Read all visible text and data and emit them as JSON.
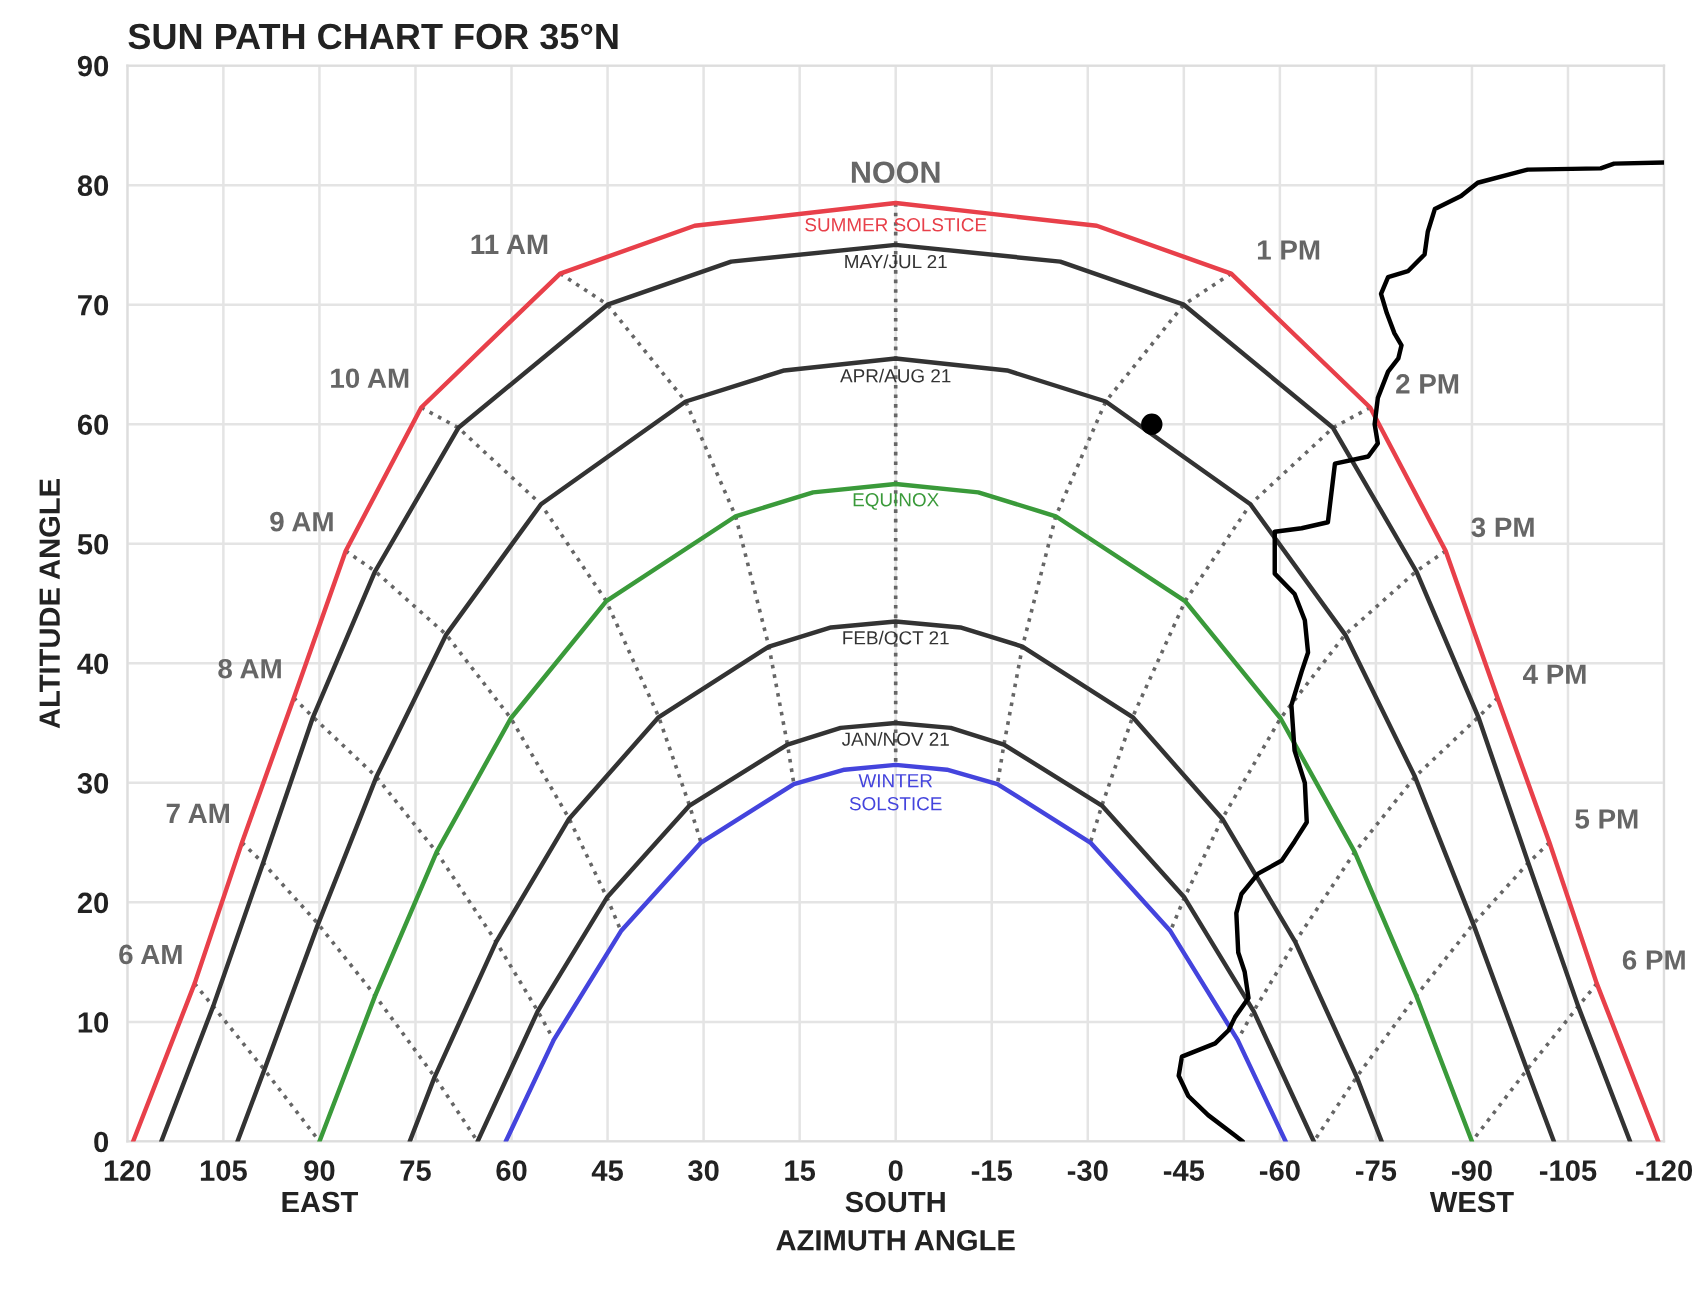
{
  "chart_data": {
    "type": "line",
    "title": "SUN PATH CHART FOR 35°N",
    "xlabel": "AZIMUTH ANGLE",
    "ylabel": "ALTITUDE ANGLE",
    "xlim": [
      120,
      -120
    ],
    "ylim": [
      0,
      90
    ],
    "xticks": [
      120,
      105,
      {
        "value": 90,
        "label": "90\nEAST"
      },
      75,
      60,
      45,
      30,
      15,
      {
        "value": 0,
        "label": "0\nSOUTH"
      },
      -15,
      -30,
      -45,
      -60,
      -75,
      {
        "value": -90,
        "label": "-90\nWEST"
      },
      -105,
      -120
    ],
    "yticks": [
      0,
      10,
      20,
      30,
      40,
      50,
      60,
      70,
      80,
      90
    ],
    "grid": true,
    "series": [
      {
        "name": "SUMMER SOLSTICE",
        "color": "#e8404a",
        "line_style": "solid",
        "x": [
          119.1,
          109.5,
          102.1,
          94,
          85.9,
          74.1,
          52.4,
          31.4,
          0,
          -31.4,
          -52.4,
          -74.1,
          -85.9,
          -94,
          -102.1,
          -109.5,
          -119.1
        ],
        "values": [
          0,
          13.2,
          25,
          37.1,
          49.4,
          61.4,
          72.6,
          76.6,
          78.5,
          76.6,
          72.6,
          61.4,
          49.4,
          37.1,
          25,
          13.2,
          0
        ]
      },
      {
        "name": "MAY/JUL 21",
        "color": "#333333",
        "line_style": "solid",
        "x": [
          114.7,
          106.6,
          98.8,
          91,
          81.3,
          68.3,
          45,
          25.7,
          0,
          -25.7,
          -45,
          -68.3,
          -81.3,
          -91,
          -98.8,
          -106.6,
          -114.7
        ],
        "values": [
          0,
          11.3,
          23.3,
          35.5,
          47.7,
          59.7,
          70,
          73.6,
          75,
          73.6,
          70,
          59.7,
          47.7,
          35.5,
          23.3,
          11.3,
          0
        ]
      },
      {
        "name": "APR/AUG 21",
        "color": "#333333",
        "line_style": "solid",
        "x": [
          102.8,
          98.6,
          90.2,
          81.1,
          70.2,
          55.4,
          32.8,
          17.4,
          0,
          -17.4,
          -32.8,
          -55.4,
          -70.2,
          -81.1,
          -90.2,
          -98.6,
          -102.8
        ],
        "values": [
          0,
          6,
          18.2,
          30.5,
          42.4,
          53.3,
          61.9,
          64.5,
          65.5,
          64.5,
          61.9,
          53.3,
          42.4,
          30.5,
          18.2,
          6,
          0
        ]
      },
      {
        "name": "EQUINOX",
        "color": "#3a9a3a",
        "line_style": "solid",
        "x": [
          90,
          81.3,
          71.7,
          60.1,
          45.2,
          25,
          12.9,
          0,
          -12.9,
          -25,
          -45.2,
          -60.1,
          -71.7,
          -81.3,
          -90
        ],
        "values": [
          0,
          12.2,
          24.2,
          35.4,
          45.2,
          52.3,
          54.3,
          55,
          54.3,
          52.3,
          45.2,
          35.4,
          24.2,
          12.2,
          0
        ]
      },
      {
        "name": "FEB/OCT 21",
        "color": "#333333",
        "line_style": "solid",
        "x": [
          75.9,
          72,
          62.4,
          51,
          37,
          19.8,
          10.1,
          0,
          -10.1,
          -19.8,
          -37,
          -51,
          -62.4,
          -72,
          -75.9
        ],
        "values": [
          0,
          5.4,
          16.7,
          27,
          35.5,
          41.4,
          43,
          43.5,
          43,
          41.4,
          35.5,
          27,
          16.7,
          5.4,
          0
        ]
      },
      {
        "name": "JAN/NOV 21",
        "color": "#333333",
        "line_style": "solid",
        "x": [
          65.3,
          55.9,
          45.1,
          32.2,
          16.9,
          8.6,
          0,
          -8.6,
          -16.9,
          -32.2,
          -45.1,
          -55.9,
          -65.3
        ],
        "values": [
          0,
          10.9,
          20.4,
          28.1,
          33.2,
          34.6,
          35,
          34.6,
          33.2,
          28.1,
          20.4,
          10.9,
          0
        ]
      },
      {
        "name": "WINTER\nSOLSTICE",
        "color": "#4444dd",
        "line_style": "solid",
        "x": [
          60.9,
          53.4,
          42.9,
          30.4,
          15.9,
          8,
          0,
          -8,
          -15.9,
          -30.4,
          -42.9,
          -53.4,
          -60.9
        ],
        "values": [
          0,
          8.5,
          17.6,
          25,
          29.9,
          31.1,
          31.5,
          31.1,
          29.9,
          25,
          17.6,
          8.5,
          0
        ]
      },
      {
        "name": "6 AM",
        "color": "#666666",
        "line_style": "dotted",
        "x": [
          109.5,
          106.6,
          98.6,
          90
        ],
        "values": [
          13.2,
          11.3,
          6,
          0
        ]
      },
      {
        "name": "7 AM",
        "color": "#666666",
        "line_style": "dotted",
        "x": [
          102.1,
          98.8,
          90.2,
          81.3,
          72,
          65.3
        ],
        "values": [
          25,
          23.3,
          18.2,
          12.2,
          5.4,
          0
        ]
      },
      {
        "name": "8 AM",
        "color": "#666666",
        "line_style": "dotted",
        "x": [
          94,
          91,
          81.1,
          71.7,
          62.4,
          55.9,
          53.4
        ],
        "values": [
          37.1,
          35.5,
          30.5,
          24.2,
          16.7,
          10.9,
          8.5
        ]
      },
      {
        "name": "9 AM",
        "color": "#666666",
        "line_style": "dotted",
        "x": [
          85.9,
          81.3,
          70.2,
          60.1,
          51,
          45.1,
          42.9
        ],
        "values": [
          49.4,
          47.7,
          42.4,
          35.4,
          27,
          20.4,
          17.6
        ]
      },
      {
        "name": "10 AM",
        "color": "#666666",
        "line_style": "dotted",
        "x": [
          74.1,
          68.3,
          55.4,
          45.2,
          37,
          32.2,
          30.4
        ],
        "values": [
          61.4,
          59.7,
          53.3,
          45.2,
          35.5,
          28.1,
          25
        ]
      },
      {
        "name": "11 AM",
        "color": "#666666",
        "line_style": "dotted",
        "x": [
          52.4,
          45,
          32.8,
          25,
          19.8,
          16.9,
          15.9
        ],
        "values": [
          72.6,
          70,
          61.9,
          52.3,
          41.4,
          33.2,
          29.9
        ]
      },
      {
        "name": "NOON",
        "color": "#666666",
        "line_style": "dotted",
        "x": [
          0,
          0,
          0,
          0,
          0,
          0,
          0
        ],
        "values": [
          78.5,
          75,
          65.5,
          55,
          43.5,
          35,
          31.5
        ]
      },
      {
        "name": "1 PM",
        "color": "#666666",
        "line_style": "dotted",
        "x": [
          -52.4,
          -45,
          -32.8,
          -25,
          -19.8,
          -16.9,
          -15.9
        ],
        "values": [
          72.6,
          70,
          61.9,
          52.3,
          41.4,
          33.2,
          29.9
        ]
      },
      {
        "name": "2 PM",
        "color": "#666666",
        "line_style": "dotted",
        "x": [
          -74.1,
          -68.3,
          -55.4,
          -45.2,
          -37,
          -32.2,
          -30.4
        ],
        "values": [
          61.4,
          59.7,
          53.3,
          45.2,
          35.5,
          28.1,
          25
        ]
      },
      {
        "name": "3 PM",
        "color": "#666666",
        "line_style": "dotted",
        "x": [
          -85.9,
          -81.3,
          -70.2,
          -60.1,
          -51,
          -45.1,
          -42.9
        ],
        "values": [
          49.4,
          47.7,
          42.4,
          35.4,
          27,
          20.4,
          17.6
        ]
      },
      {
        "name": "4 PM",
        "color": "#666666",
        "line_style": "dotted",
        "x": [
          -94,
          -91,
          -81.1,
          -71.7,
          -62.4,
          -55.9,
          -53.4
        ],
        "values": [
          37.1,
          35.5,
          30.5,
          24.2,
          16.7,
          10.9,
          8.5
        ]
      },
      {
        "name": "5 PM",
        "color": "#666666",
        "line_style": "dotted",
        "x": [
          -102.1,
          -98.8,
          -90.2,
          -81.3,
          -72,
          -65.3
        ],
        "values": [
          25,
          23.3,
          18.2,
          12.2,
          5.4,
          0
        ]
      },
      {
        "name": "6 PM",
        "color": "#666666",
        "line_style": "dotted",
        "x": [
          -109.5,
          -106.6,
          -98.6,
          -90
        ],
        "values": [
          13.2,
          11.3,
          6,
          0
        ]
      },
      {
        "color": "#000000",
        "line_style": "solid",
        "x": [
          -54.2,
          -53,
          -48.8,
          -45.7,
          -44.2,
          -44.7,
          -49.9,
          -52,
          -53,
          -55.1,
          -54.5,
          -53.5,
          -53.2,
          -54,
          -56.6,
          -60.3,
          -62.3,
          -64.2,
          -63.9,
          -62.3,
          -61.8,
          -63.4,
          -64.4,
          -63.9,
          -62.3,
          -59.2,
          -59.2,
          -63.4,
          -67.5,
          -68.6,
          -73.8,
          -75.3,
          -74.8,
          -75.3,
          -76.9,
          -78.5,
          -79,
          -77.9,
          -76.7,
          -75.8,
          -76.9,
          -80,
          -82.6,
          -83.1,
          -84.2,
          -88.3,
          -90.9,
          -96.6,
          -98.7,
          -110.1,
          -112.2,
          -120
        ],
        "values": [
          0,
          0.5,
          2.2,
          3.8,
          5.5,
          7.1,
          8.2,
          9.3,
          10.4,
          12,
          14.2,
          15.8,
          19.1,
          20.7,
          22.4,
          23.5,
          25.1,
          26.7,
          30,
          32.7,
          36.5,
          39.3,
          40.9,
          43.6,
          45.8,
          47.5,
          51,
          51.3,
          51.8,
          56.7,
          57.3,
          58.4,
          60,
          62.2,
          64.4,
          65.5,
          66.6,
          67.6,
          69.3,
          70.9,
          72.3,
          72.8,
          74.2,
          76.1,
          78,
          79.1,
          80.2,
          81,
          81.3,
          81.4,
          81.8,
          81.9
        ]
      },
      {
        "type": "scatter",
        "color": "#000000",
        "marker": "circle",
        "x": [
          -40
        ],
        "values": [
          60
        ]
      }
    ]
  }
}
